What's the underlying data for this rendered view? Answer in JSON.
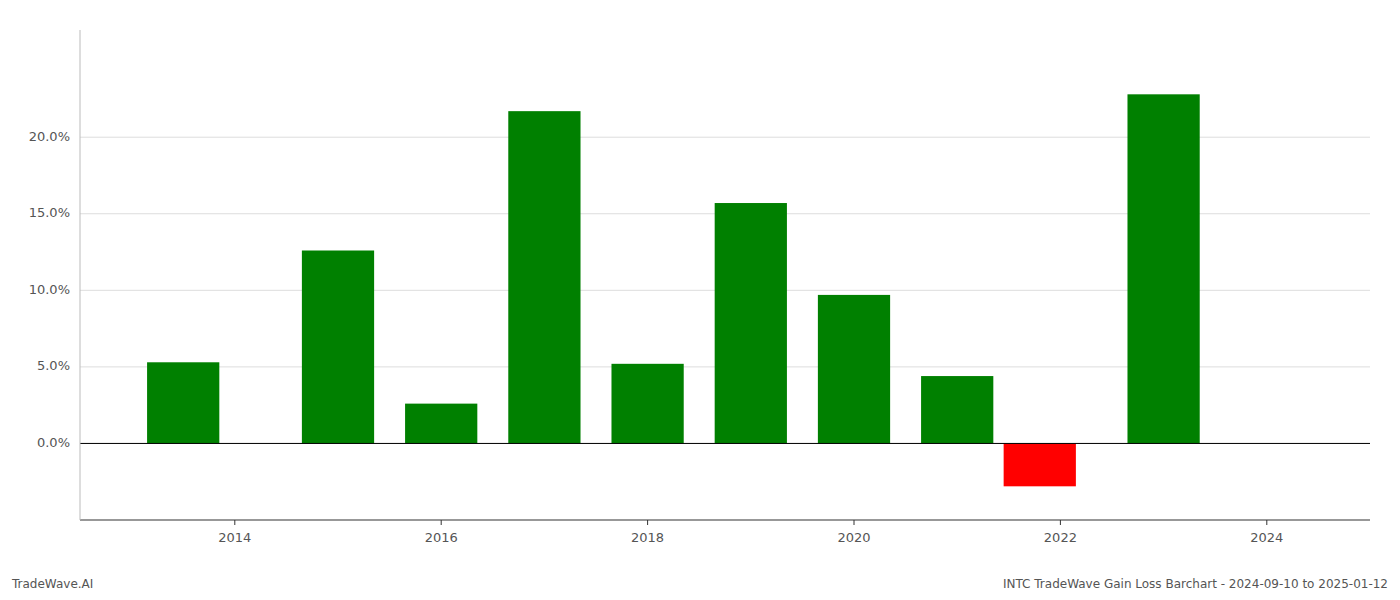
{
  "chart_data": {
    "type": "bar",
    "x": [
      2013.5,
      2015.0,
      2016.0,
      2017.0,
      2018.0,
      2019.0,
      2020.0,
      2021.0,
      2021.8,
      2023.0
    ],
    "values": [
      0.053,
      0.126,
      0.026,
      0.217,
      0.052,
      0.157,
      0.097,
      0.044,
      -0.028,
      0.228
    ],
    "colors": [
      "#008000",
      "#008000",
      "#008000",
      "#008000",
      "#008000",
      "#008000",
      "#008000",
      "#008000",
      "#ff0000",
      "#008000"
    ],
    "xlim": [
      2012.5,
      2025.0
    ],
    "ylim": [
      -0.05,
      0.27
    ],
    "xticks": [
      2014,
      2016,
      2018,
      2020,
      2022,
      2024
    ],
    "yticks": [
      {
        "value": 0.0,
        "label": "0.0%"
      },
      {
        "value": 0.05,
        "label": "5.0%"
      },
      {
        "value": 0.1,
        "label": "10.0%"
      },
      {
        "value": 0.15,
        "label": "15.0%"
      },
      {
        "value": 0.2,
        "label": "20.0%"
      }
    ],
    "grid": true,
    "annotations": [
      "TradeWave.AI",
      "INTC TradeWave Gain Loss Barchart - 2024-09-10 to 2025-01-12"
    ]
  }
}
